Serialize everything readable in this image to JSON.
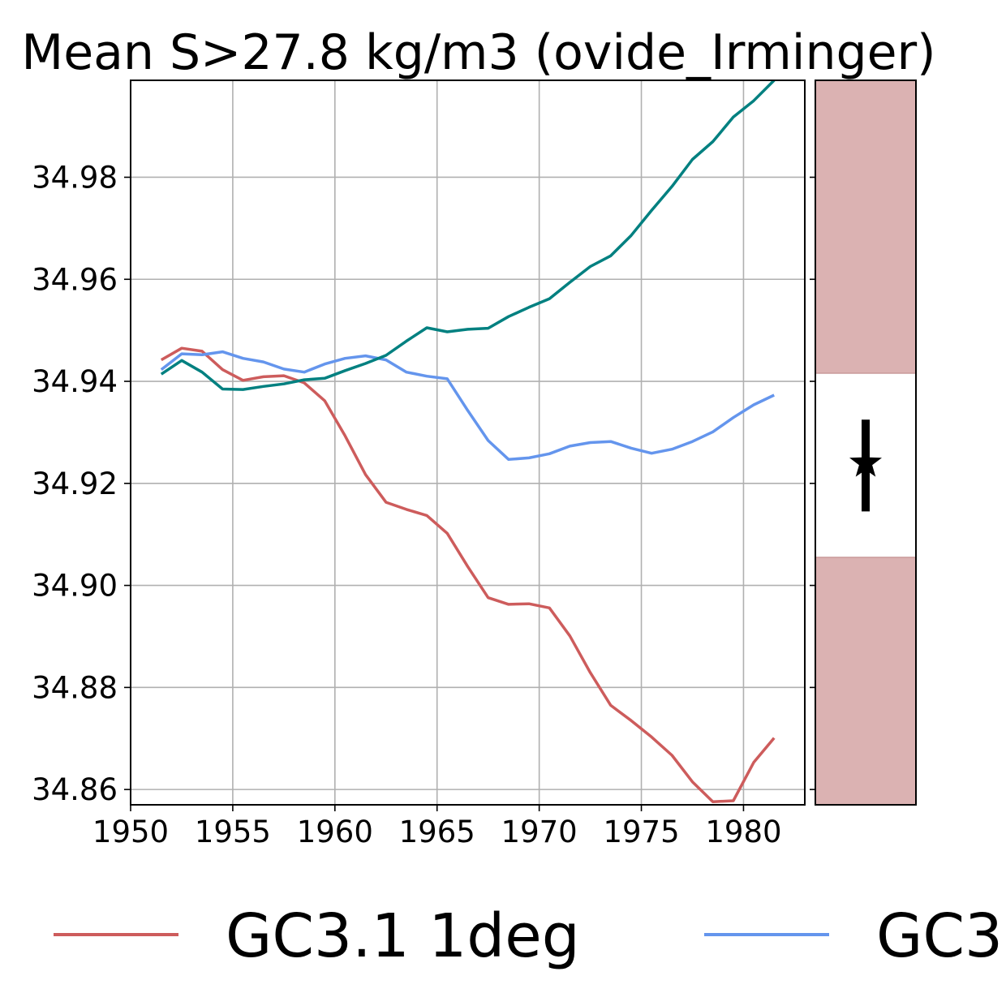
{
  "chart_data": {
    "type": "line",
    "title": "Mean S>27.8 kg/m3 (ovide_Irminger)",
    "xlabel": "",
    "ylabel": "",
    "xlim": [
      1950,
      1983
    ],
    "ylim": [
      34.857,
      34.999
    ],
    "xticks": [
      "1950",
      "1955",
      "1960",
      "1965",
      "1970",
      "1975",
      "1980"
    ],
    "yticks": [
      "34.86",
      "34.88",
      "34.90",
      "34.92",
      "34.94",
      "34.96",
      "34.98"
    ],
    "grid": true,
    "legend_position": "bottom",
    "legend_labels": [
      "GC3.1 1deg",
      "GC3"
    ],
    "series": [
      {
        "name": "GC3.1 1deg",
        "color": "#cd5c5c",
        "x": [
          1951.5,
          1952.5,
          1953.5,
          1954.5,
          1955.5,
          1956.5,
          1957.5,
          1958.5,
          1959.5,
          1960.5,
          1961.5,
          1962.5,
          1963.5,
          1964.5,
          1965.5,
          1966.5,
          1967.5,
          1968.5,
          1969.5,
          1970.5,
          1971.5,
          1972.5,
          1973.5,
          1974.5,
          1975.5,
          1976.5,
          1977.5,
          1978.5,
          1979.5,
          1980.5,
          1981.5
        ],
        "y": [
          34.9442,
          34.9465,
          34.9459,
          34.9423,
          34.9402,
          34.9409,
          34.9411,
          34.9397,
          34.9362,
          34.9293,
          34.9217,
          34.9163,
          34.9149,
          34.9137,
          34.9102,
          34.9037,
          34.8976,
          34.8963,
          34.8964,
          34.8956,
          34.8901,
          34.8829,
          34.8765,
          34.8735,
          34.8703,
          34.8667,
          34.8615,
          34.8576,
          34.8578,
          34.8653,
          34.8701
        ]
      },
      {
        "name": "",
        "color": "#6495ed",
        "x": [
          1951.5,
          1952.5,
          1953.5,
          1954.5,
          1955.5,
          1956.5,
          1957.5,
          1958.5,
          1959.5,
          1960.5,
          1961.5,
          1962.5,
          1963.5,
          1964.5,
          1965.5,
          1966.5,
          1967.5,
          1968.5,
          1969.5,
          1970.5,
          1971.5,
          1972.5,
          1973.5,
          1974.5,
          1975.5,
          1976.5,
          1977.5,
          1978.5,
          1979.5,
          1980.5,
          1981.5
        ],
        "y": [
          34.9423,
          34.9454,
          34.9452,
          34.9458,
          34.9445,
          34.9438,
          34.9424,
          34.9418,
          34.9434,
          34.9445,
          34.945,
          34.9442,
          34.9418,
          34.941,
          34.9405,
          34.9343,
          34.9284,
          34.9247,
          34.925,
          34.9258,
          34.9273,
          34.928,
          34.9282,
          34.9269,
          34.9259,
          34.9267,
          34.9282,
          34.9301,
          34.9329,
          34.9354,
          34.9373
        ]
      },
      {
        "name": "",
        "color": "#008080",
        "x": [
          1951.5,
          1952.5,
          1953.5,
          1954.5,
          1955.5,
          1956.5,
          1957.5,
          1958.5,
          1959.5,
          1960.5,
          1961.5,
          1962.5,
          1963.5,
          1964.5,
          1965.5,
          1966.5,
          1967.5,
          1968.5,
          1969.5,
          1970.5,
          1971.5,
          1972.5,
          1973.5,
          1974.5,
          1975.5,
          1976.5,
          1977.5,
          1978.5,
          1979.5,
          1980.5,
          1981.5
        ],
        "y": [
          34.9414,
          34.9441,
          34.9418,
          34.9385,
          34.9384,
          34.939,
          34.9395,
          34.9403,
          34.9406,
          34.9421,
          34.9435,
          34.9451,
          34.9479,
          34.9505,
          34.9497,
          34.9502,
          34.9504,
          34.9527,
          34.9545,
          34.9562,
          34.9594,
          34.9625,
          34.9646,
          34.9686,
          34.9735,
          34.9782,
          34.9835,
          34.987,
          34.9918,
          34.995,
          34.999
        ]
      }
    ],
    "side_panel": {
      "ylim": [
        34.857,
        34.999
      ],
      "shaded_color": "#dbb2b2",
      "shaded_below": 34.9055,
      "shaded_above": 34.9416,
      "marker": "star",
      "marker_value": 34.924,
      "error_low": 34.9145,
      "error_high": 34.9325
    }
  }
}
